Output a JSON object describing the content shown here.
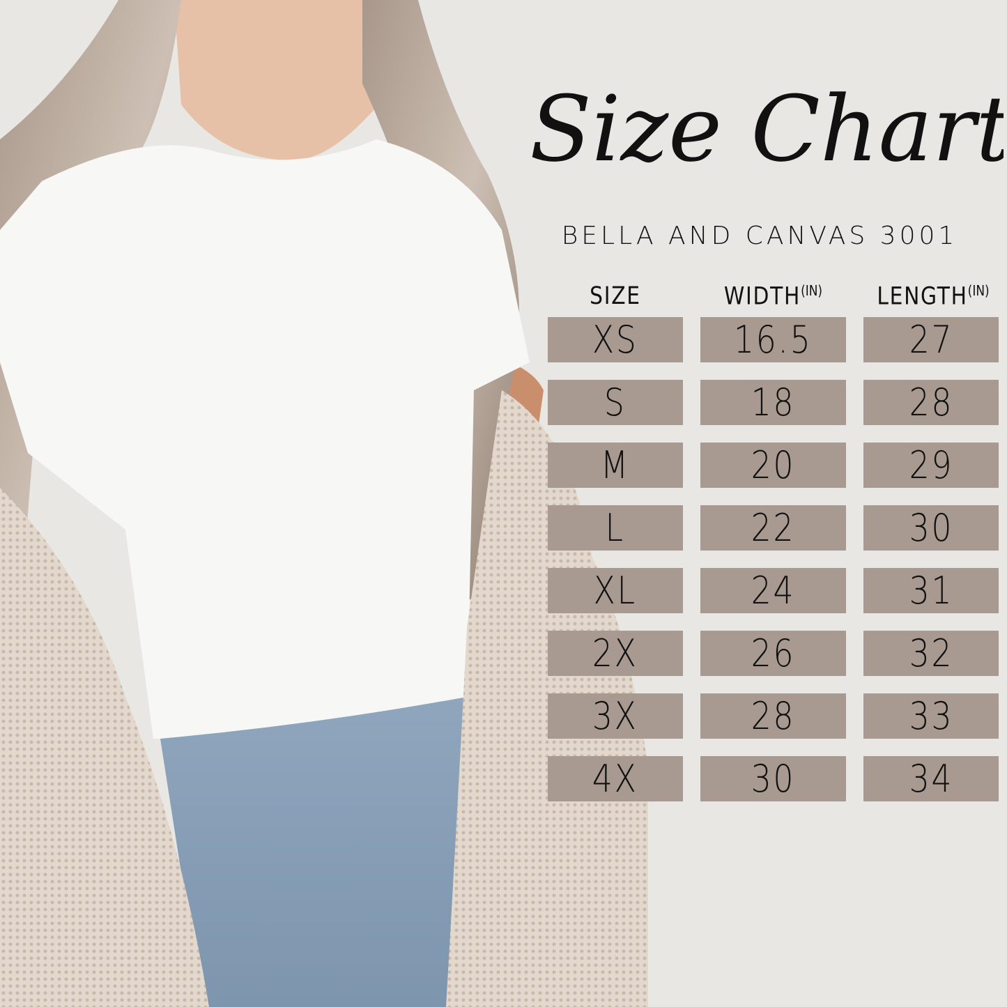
{
  "title": "Size Chart",
  "subtitle": "BELLA AND CANVAS 3001",
  "table": {
    "headers": [
      {
        "label": "SIZE",
        "unit": ""
      },
      {
        "label": "WIDTH",
        "unit": "(IN)"
      },
      {
        "label": "LENGTH",
        "unit": "(IN)"
      }
    ],
    "rows": [
      {
        "size": "XS",
        "width": "16.5",
        "length": "27"
      },
      {
        "size": "S",
        "width": "18",
        "length": "28"
      },
      {
        "size": "M",
        "width": "20",
        "length": "29"
      },
      {
        "size": "L",
        "width": "22",
        "length": "30"
      },
      {
        "size": "XL",
        "width": "24",
        "length": "31"
      },
      {
        "size": "2X",
        "width": "26",
        "length": "32"
      },
      {
        "size": "3X",
        "width": "28",
        "length": "33"
      },
      {
        "size": "4X",
        "width": "30",
        "length": "34"
      }
    ]
  },
  "colors": {
    "cell": "#a89a90",
    "background": "#e9e7e4",
    "text": "#111111"
  }
}
